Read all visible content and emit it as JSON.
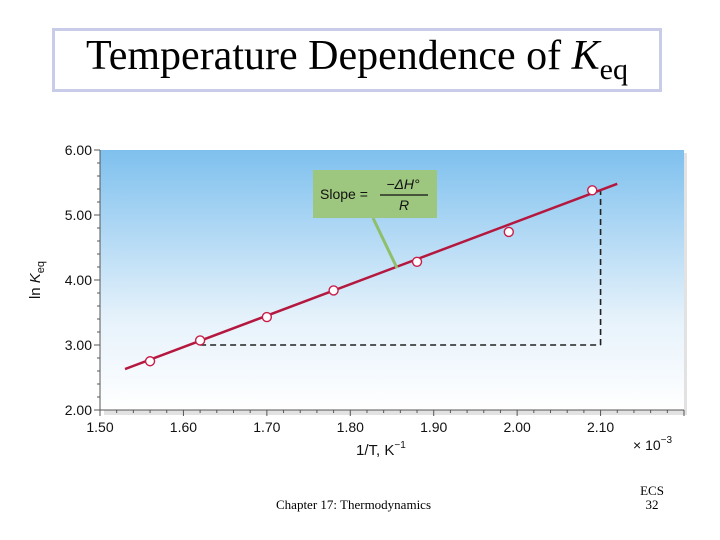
{
  "slide": {
    "title_main": "Temperature Dependence of ",
    "title_var": "K",
    "title_sub": "eq",
    "footer_chapter": "Chapter 17: Thermodynamics",
    "footer_tag": "ECS",
    "footer_page": "32"
  },
  "chart_data": {
    "type": "scatter",
    "xlabel": "1/T,  K",
    "xlabel_exp": "−1",
    "x_multiplier": "× 10",
    "x_multiplier_exp": "−3",
    "ylabel_prefix": "ln ",
    "ylabel_var": "K",
    "ylabel_sub": "eq",
    "xlim": [
      1.5,
      2.2
    ],
    "ylim": [
      2.0,
      6.0
    ],
    "x_ticks": [
      "1.50",
      "1.60",
      "1.70",
      "1.80",
      "1.90",
      "2.00",
      "2.10"
    ],
    "y_ticks": [
      "2.00",
      "3.00",
      "4.00",
      "5.00",
      "6.00"
    ],
    "points": [
      {
        "x": 1.56,
        "y": 2.75
      },
      {
        "x": 1.62,
        "y": 3.07
      },
      {
        "x": 1.7,
        "y": 3.43
      },
      {
        "x": 1.78,
        "y": 3.84
      },
      {
        "x": 1.88,
        "y": 4.28
      },
      {
        "x": 1.99,
        "y": 4.74
      },
      {
        "x": 2.09,
        "y": 5.38
      }
    ],
    "fit_line": {
      "x": [
        1.53,
        2.12
      ],
      "y": [
        2.63,
        5.48
      ]
    },
    "guide_lines": {
      "x1": 1.62,
      "y1": 3.0,
      "x2": 2.1,
      "y2": 5.38
    },
    "annotation": {
      "text_prefix": "Slope = ",
      "numerator": "−ΔH°",
      "denominator": "R"
    },
    "colors": {
      "line": "#b5183f",
      "marker": "#c81e4a",
      "panel_bottom": "#ffffff",
      "panel_top": "#7ec0ee",
      "annotation_bg": "#9dc67e",
      "pointer": "#8fbf6a"
    }
  }
}
